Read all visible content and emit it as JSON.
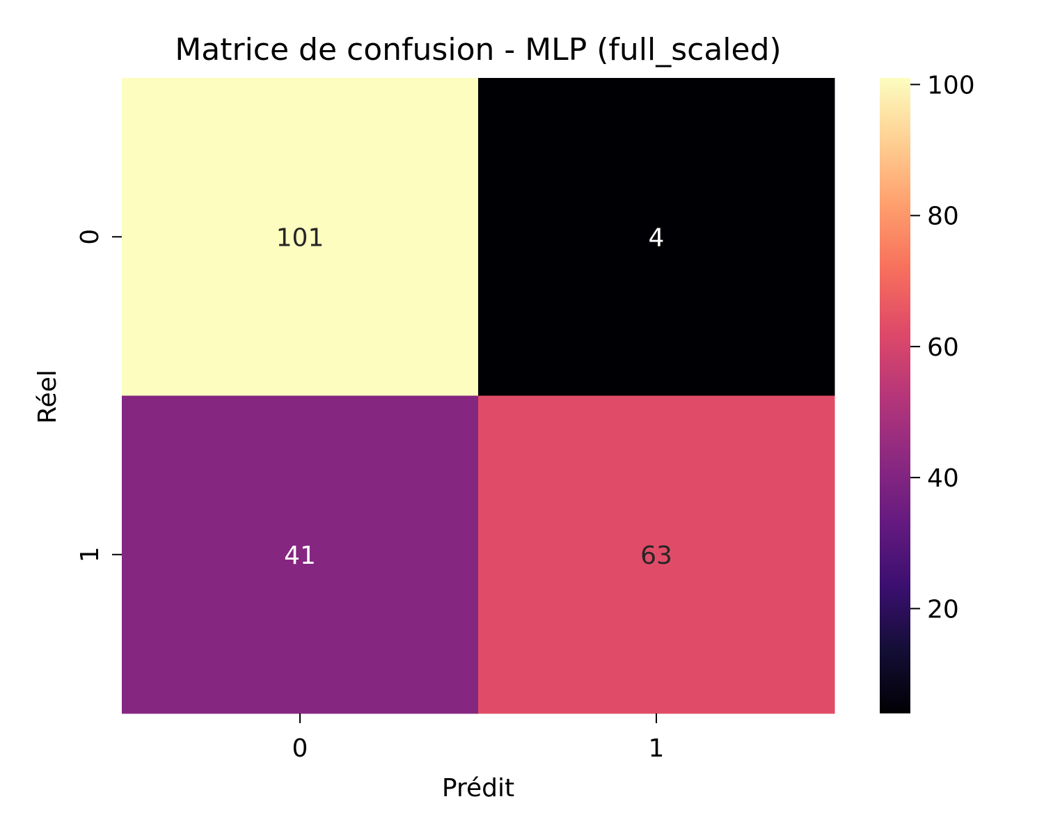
{
  "chart_data": {
    "type": "heatmap",
    "title": "Matrice de confusion - MLP (full_scaled)",
    "xlabel": "Prédit",
    "ylabel": "Réel",
    "x_categories": [
      "0",
      "1"
    ],
    "y_categories": [
      "0",
      "1"
    ],
    "values": [
      [
        101,
        4
      ],
      [
        41,
        63
      ]
    ],
    "colormap": "magma",
    "colorbar": {
      "range": [
        4,
        101
      ],
      "ticks": [
        "20",
        "40",
        "60",
        "80",
        "100"
      ]
    },
    "annotation_colors": {
      "light_text": "#ffffff",
      "dark_text": "#262626"
    }
  }
}
